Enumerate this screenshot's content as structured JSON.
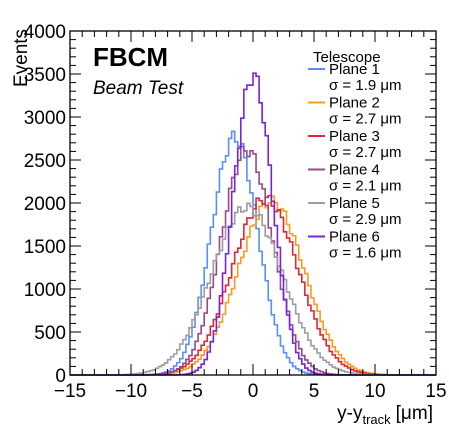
{
  "chart_data": {
    "type": "line",
    "experiment": "FBCM",
    "subtitle": "Beam Test",
    "legend_title": "Telescope",
    "legend_placement": "top-right",
    "xlabel": "y-y",
    "xlabel_sub": "track",
    "xlabel_unit": "[μm]",
    "ylabel": "Events",
    "xlim": [
      -15,
      15
    ],
    "ylim": [
      0,
      4000
    ],
    "x_ticks": [
      -15,
      -10,
      -5,
      0,
      5,
      10,
      15
    ],
    "x_tick_labels": [
      "−15",
      "−10",
      "−5",
      "0",
      "5",
      "10",
      "15"
    ],
    "y_ticks": [
      0,
      500,
      1000,
      1500,
      2000,
      2500,
      3000,
      3500,
      4000
    ],
    "y_tick_labels": [
      "0",
      "500",
      "1000",
      "1500",
      "2000",
      "2500",
      "3000",
      "3500",
      "4000"
    ],
    "grid": false,
    "bin_width": 0.25,
    "series": [
      {
        "name": "Plane 1",
        "sigma_label": "σ = 1.9 μm",
        "color": "#5790fc",
        "mean": -1.5,
        "sigma": 1.9,
        "peak": 2770
      },
      {
        "name": "Plane 2",
        "sigma_label": "σ = 2.7 μm",
        "color": "#f89c20",
        "mean": 1.5,
        "sigma": 2.7,
        "peak": 2020
      },
      {
        "name": "Plane 3",
        "sigma_label": "σ = 2.7 μm",
        "color": "#e42536",
        "mean": 1.0,
        "sigma": 2.7,
        "peak": 2050
      },
      {
        "name": "Plane 4",
        "sigma_label": "σ = 2.1 μm",
        "color": "#964a8b",
        "mean": -0.5,
        "sigma": 2.1,
        "peak": 2620
      },
      {
        "name": "Plane 5",
        "sigma_label": "σ = 2.9 μm",
        "color": "#9c9ca1",
        "mean": -0.5,
        "sigma": 2.9,
        "peak": 1950
      },
      {
        "name": "Plane 6",
        "sigma_label": "σ = 1.6 μm",
        "color": "#7a21dd",
        "mean": 0.0,
        "sigma": 1.6,
        "peak": 3480
      }
    ]
  }
}
